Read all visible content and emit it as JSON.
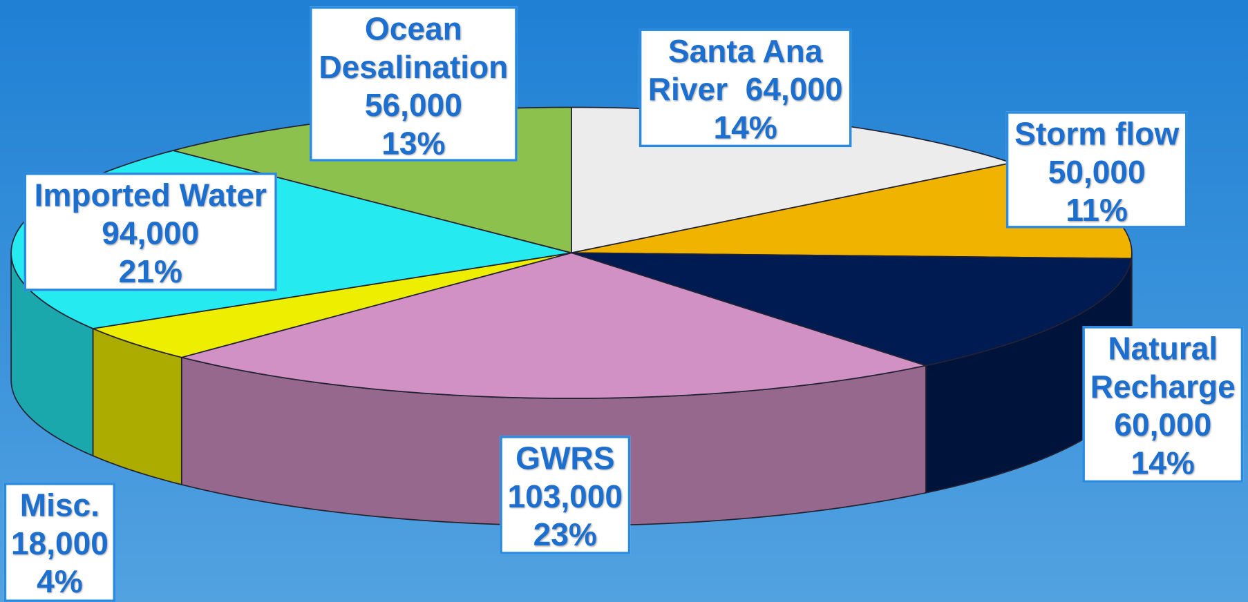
{
  "chart_data": {
    "type": "pie",
    "categories": [
      "Santa Ana River",
      "Storm flow",
      "Natural Recharge",
      "GWRS",
      "Misc.",
      "Imported Water",
      "Ocean Desalination"
    ],
    "values": [
      64000,
      50000,
      60000,
      103000,
      18000,
      94000,
      56000
    ],
    "value_labels": [
      "64,000",
      "50,000",
      "60,000",
      "103,000",
      "18,000",
      "94,000",
      "56,000"
    ],
    "percents": [
      14,
      11,
      14,
      23,
      4,
      21,
      13
    ],
    "percent_labels": [
      "14%",
      "11%",
      "14%",
      "23%",
      "4%",
      "21%",
      "13%"
    ],
    "colors": [
      "#ececec",
      "#f0b400",
      "#001a52",
      "#d291c4",
      "#eeee00",
      "#25eaf0",
      "#8bc14c"
    ]
  }
}
